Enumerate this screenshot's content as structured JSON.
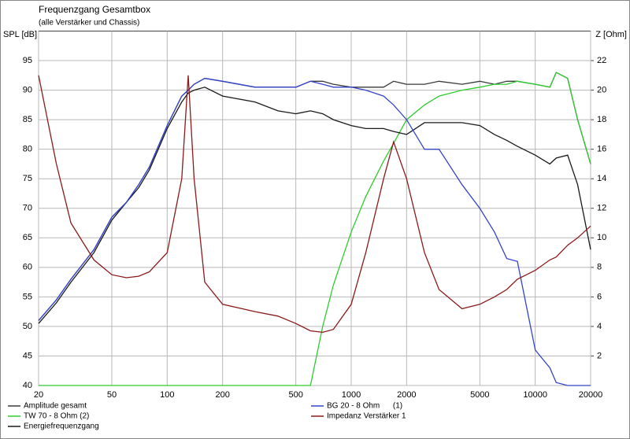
{
  "chart_data": {
    "type": "line",
    "title": "Frequenzgang Gesamtbox",
    "subtitle": "(alle Verstärker und Chassis)",
    "y_label": "SPL [dB]",
    "y2_label": "Z [Ohm]",
    "xlog": true,
    "grid": true,
    "x": [
      20,
      25,
      30,
      40,
      50,
      60,
      70,
      80,
      100,
      120,
      130,
      140,
      160,
      200,
      300,
      400,
      500,
      600,
      700,
      800,
      1000,
      1200,
      1500,
      1700,
      2000,
      2500,
      3000,
      4000,
      5000,
      6000,
      7000,
      8000,
      10000,
      12000,
      13000,
      15000,
      17000,
      20000
    ],
    "xlim": [
      20,
      20000
    ],
    "xticks": [
      20,
      50,
      100,
      200,
      500,
      1000,
      2000,
      5000,
      10000,
      20000
    ],
    "ylim": [
      40,
      100
    ],
    "yticks": [
      40,
      45,
      50,
      55,
      60,
      65,
      70,
      75,
      80,
      85,
      90,
      95
    ],
    "y2lim": [
      0,
      24
    ],
    "y2ticks": [
      2,
      4,
      6,
      8,
      10,
      12,
      14,
      16,
      18,
      20,
      22
    ],
    "series": [
      {
        "name": "Amplitude gesamt",
        "color": "#3a3a3a",
        "values": [
          51,
          54.5,
          58,
          63,
          68.5,
          71,
          74,
          77,
          84,
          89,
          90,
          91,
          92,
          91.5,
          90.5,
          90.5,
          90.5,
          91.5,
          91.5,
          91,
          90.5,
          90.5,
          90.5,
          91.5,
          91,
          91,
          91.5,
          91,
          91.5,
          91,
          91.5,
          91.5,
          91,
          90.5,
          93,
          92,
          85,
          77.5
        ]
      },
      {
        "name": "TW 70 - 8 Ohm (2)",
        "color": "#2ecc2e",
        "values": [
          40,
          40,
          40,
          40,
          40,
          40,
          40,
          40,
          40,
          40,
          40,
          40,
          40,
          40,
          40,
          40,
          40,
          40,
          50,
          57,
          66,
          72,
          78,
          81,
          85,
          87.5,
          89,
          90,
          90.5,
          91,
          91,
          91.5,
          91,
          90.5,
          93,
          92,
          85,
          77.5
        ]
      },
      {
        "name": "Energiefrequenzgang",
        "color": "#1a1a1a",
        "values": [
          50.5,
          54,
          57.5,
          62.5,
          68,
          71,
          73.5,
          76.5,
          83.5,
          88,
          89.5,
          90,
          90.5,
          89,
          88,
          86.5,
          86,
          86.5,
          86,
          85,
          84,
          83.5,
          83.5,
          83,
          82.5,
          84.5,
          84.5,
          84.5,
          84,
          82.5,
          81.5,
          80.5,
          79,
          77.5,
          78.5,
          79,
          74,
          63
        ]
      },
      {
        "name": "BG 20 - 8 Ohm      (1)",
        "color": "#3344cc",
        "values": [
          51,
          54.5,
          58,
          63,
          68.5,
          71,
          74,
          77,
          84,
          89,
          90,
          91,
          92,
          91.5,
          90.5,
          90.5,
          90.5,
          91.5,
          91,
          90.5,
          90.5,
          90,
          89,
          87.5,
          85,
          80,
          80,
          74,
          70,
          66,
          61.5,
          61,
          46,
          43,
          40.5,
          40,
          40,
          40
        ]
      },
      {
        "name": "Impedanz Verstärker 1",
        "color": "#8b1a1a",
        "axis": "y2",
        "values": [
          21,
          15,
          11,
          8.5,
          7.5,
          7.3,
          7.4,
          7.7,
          9,
          14,
          21,
          14,
          7,
          5.5,
          5,
          4.7,
          4.2,
          3.7,
          3.6,
          3.8,
          5.5,
          9,
          14,
          16.5,
          14,
          9,
          6.5,
          5.2,
          5.5,
          6,
          6.5,
          7.2,
          7.8,
          8.5,
          8.7,
          9.5,
          10,
          10.8
        ]
      }
    ]
  }
}
